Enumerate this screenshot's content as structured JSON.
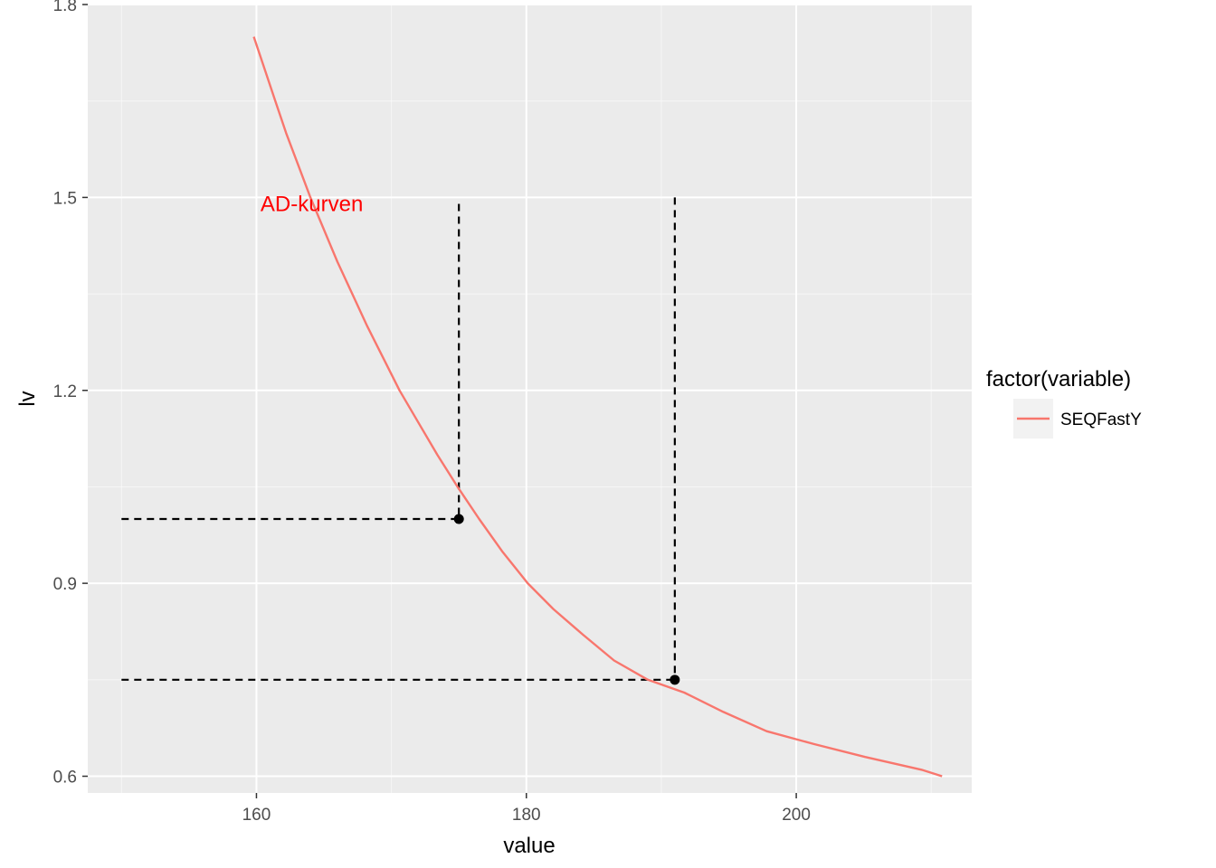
{
  "chart_data": {
    "type": "line",
    "xlabel": "value",
    "ylabel": "lv",
    "xlim": [
      147.5,
      213
    ],
    "ylim": [
      0.574,
      1.8
    ],
    "x_ticks": [
      160,
      180,
      200
    ],
    "x_minor": [
      150,
      170,
      190,
      210
    ],
    "y_ticks": [
      0.6,
      0.9,
      1.2,
      1.5,
      1.8
    ],
    "y_minor": [
      0.75,
      1.05,
      1.35,
      1.65
    ],
    "grid": true,
    "legend_position": "right",
    "legend": {
      "title": "factor(variable)",
      "entries": [
        "SEQFastY"
      ]
    },
    "series": [
      {
        "name": "SEQFastY",
        "color": "#F8766D",
        "x": [
          159.8,
          160.6,
          161.4,
          162.2,
          163.1,
          164.0,
          165.0,
          166.0,
          167.1,
          168.2,
          169.4,
          170.6,
          172.0,
          173.4,
          174.9,
          176.5,
          178.2,
          180.1,
          182.0,
          184.2,
          186.5,
          189.0,
          191.7,
          194.6,
          197.8,
          201.3,
          205.1,
          209.3,
          210.8
        ],
        "y": [
          1.75,
          1.7,
          1.65,
          1.6,
          1.55,
          1.5,
          1.45,
          1.4,
          1.35,
          1.3,
          1.25,
          1.2,
          1.15,
          1.1,
          1.05,
          1.0,
          0.95,
          0.9,
          0.86,
          0.82,
          0.78,
          0.75,
          0.73,
          0.7,
          0.67,
          0.65,
          0.63,
          0.61,
          0.6
        ]
      }
    ],
    "reference_lines": [
      {
        "x": 175,
        "y": 1.0,
        "y_top": 1.49,
        "x_start": 150
      },
      {
        "x": 191,
        "y": 0.75,
        "y_top": 1.5,
        "x_start": 150
      }
    ],
    "points": [
      {
        "x": 175,
        "y": 1.0
      },
      {
        "x": 191,
        "y": 0.75
      }
    ],
    "annotations": [
      {
        "text": "AD-kurven",
        "x": 160.3,
        "y": 1.49,
        "color": "#FF0000"
      }
    ]
  },
  "colors": {
    "panel_bg": "#EBEBEB",
    "grid_major": "#FFFFFF",
    "tick_color": "#333333",
    "reference": "#000000"
  }
}
